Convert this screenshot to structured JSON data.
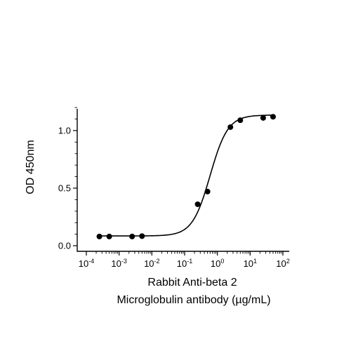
{
  "chart_data": {
    "type": "scatter",
    "xlabel_lines": [
      "Rabbit Anti-beta 2",
      "Microglobulin antibody (µg/mL)"
    ],
    "ylabel": "OD 450nm",
    "xscale": "log",
    "xlim": [
      0.0001,
      100
    ],
    "ylim": [
      0,
      1.2
    ],
    "x_ticks": [
      {
        "value": 0.0001,
        "base": "10",
        "exp": "-4"
      },
      {
        "value": 0.001,
        "base": "10",
        "exp": "-3"
      },
      {
        "value": 0.01,
        "base": "10",
        "exp": "-2"
      },
      {
        "value": 0.1,
        "base": "10",
        "exp": "-1"
      },
      {
        "value": 1,
        "base": "10",
        "exp": "0"
      },
      {
        "value": 10,
        "base": "10",
        "exp": "1"
      },
      {
        "value": 100,
        "base": "10",
        "exp": "2"
      }
    ],
    "y_ticks": [
      {
        "value": 0.0,
        "label": "0.0"
      },
      {
        "value": 0.5,
        "label": "0.5"
      },
      {
        "value": 1.0,
        "label": "1.0"
      }
    ],
    "grid": false,
    "series": [
      {
        "points": [
          {
            "x": 0.00025,
            "y": 0.08
          },
          {
            "x": 0.0005,
            "y": 0.08
          },
          {
            "x": 0.0025,
            "y": 0.08
          },
          {
            "x": 0.005,
            "y": 0.083
          },
          {
            "x": 0.25,
            "y": 0.36
          },
          {
            "x": 0.5,
            "y": 0.47
          },
          {
            "x": 2.5,
            "y": 1.03
          },
          {
            "x": 5,
            "y": 1.09
          },
          {
            "x": 25,
            "y": 1.11
          },
          {
            "x": 50,
            "y": 1.12
          }
        ],
        "fit_curve": {
          "model": "4PL",
          "bottom": 0.085,
          "top": 1.135,
          "ec50": 0.6,
          "hill": 1.6
        }
      }
    ]
  }
}
